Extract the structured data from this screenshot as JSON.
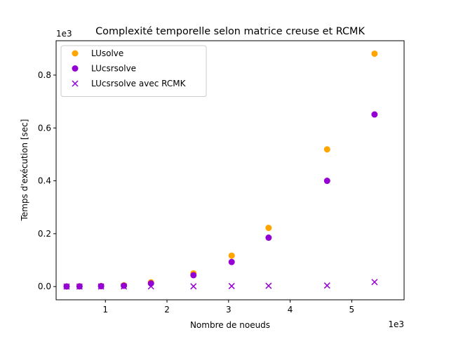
{
  "chart_data": {
    "type": "scatter",
    "title": "Complexité temporelle selon matrice creuse et RCMK",
    "xlabel": "Nombre de noeuds",
    "ylabel": "Temps d'exécution [sec]",
    "x_offset_label": "1e3",
    "y_offset_label": "1e3",
    "xlim": [
      0.2,
      5.85
    ],
    "ylim": [
      -0.05,
      0.93
    ],
    "x_ticks": [
      1,
      2,
      3,
      4,
      5
    ],
    "y_ticks": [
      0.0,
      0.2,
      0.4,
      0.6,
      0.8
    ],
    "x_tick_labels": [
      "1",
      "2",
      "3",
      "4",
      "5"
    ],
    "y_tick_labels": [
      "0.0",
      "0.2",
      "0.4",
      "0.6",
      "0.8"
    ],
    "legend_position": "top-left",
    "grid": false,
    "series": [
      {
        "name": "LUsolve",
        "marker": "circle",
        "color": "#ffa500",
        "x": [
          0.37,
          0.58,
          0.93,
          1.3,
          1.74,
          2.43,
          3.05,
          3.65,
          4.6,
          5.37
        ],
        "y": [
          0.0005,
          0.001,
          0.002,
          0.005,
          0.016,
          0.05,
          0.117,
          0.222,
          0.519,
          0.881
        ]
      },
      {
        "name": "LUcsrsolve",
        "marker": "circle",
        "color": "#9400d3",
        "x": [
          0.37,
          0.58,
          0.93,
          1.3,
          1.74,
          2.43,
          3.05,
          3.65,
          4.6,
          5.37
        ],
        "y": [
          0.0004,
          0.0008,
          0.0015,
          0.003,
          0.012,
          0.043,
          0.093,
          0.185,
          0.4,
          0.651
        ]
      },
      {
        "name": "LUcsrsolve avec RCMK",
        "marker": "x",
        "color": "#9400d3",
        "x": [
          0.37,
          0.58,
          0.93,
          1.3,
          1.74,
          2.43,
          3.05,
          3.65,
          4.6,
          5.37
        ],
        "y": [
          0.0001,
          0.0002,
          0.0003,
          0.0005,
          0.0008,
          0.001,
          0.002,
          0.003,
          0.004,
          0.017
        ]
      }
    ]
  }
}
